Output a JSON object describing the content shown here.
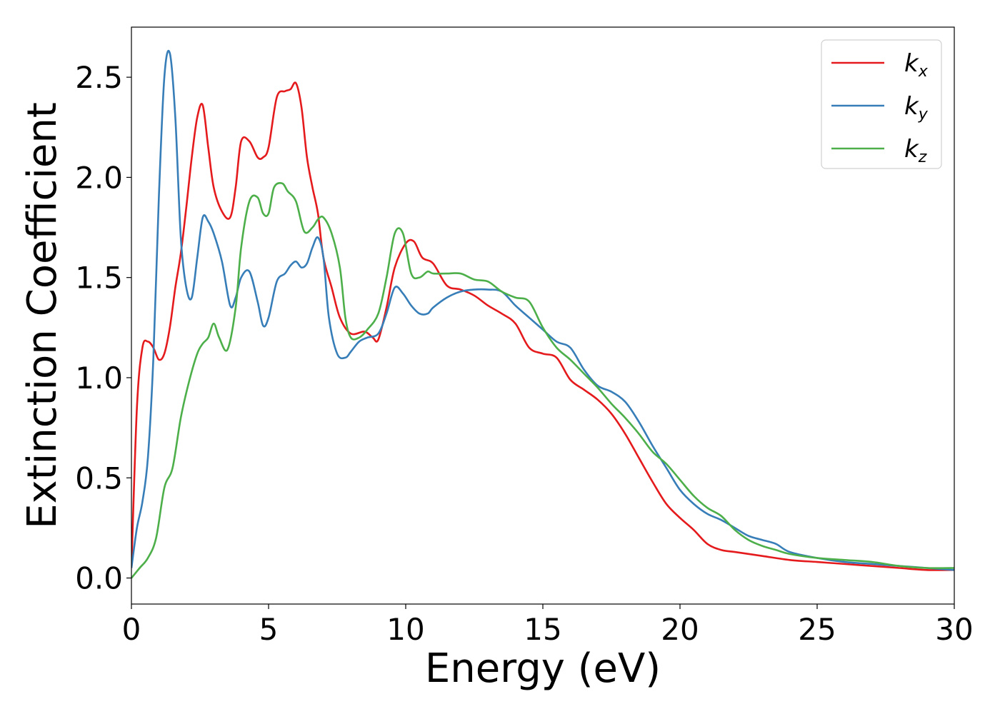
{
  "chart_data": {
    "type": "line",
    "xlabel": "Energy (eV)",
    "ylabel": "Extinction Coefficient",
    "xlim": [
      0,
      30
    ],
    "ylim": [
      -0.13,
      2.75
    ],
    "xticks": [
      0,
      5,
      10,
      15,
      20,
      25,
      30
    ],
    "xtick_labels": [
      "0",
      "5",
      "10",
      "15",
      "20",
      "25",
      "30"
    ],
    "yticks": [
      0.0,
      0.5,
      1.0,
      1.5,
      2.0,
      2.5
    ],
    "ytick_labels": [
      "0.0",
      "0.5",
      "1.0",
      "1.5",
      "2.0",
      "2.5"
    ],
    "grid": false,
    "legend_position": "top-right",
    "series": [
      {
        "name": "kx",
        "label_main": "k",
        "label_sub": "x",
        "color": "#e41a1c",
        "x": [
          0,
          0.2,
          0.4,
          0.6,
          0.8,
          1.0,
          1.2,
          1.4,
          1.6,
          1.8,
          2.0,
          2.2,
          2.4,
          2.6,
          2.8,
          3.0,
          3.3,
          3.6,
          3.8,
          4.0,
          4.3,
          4.6,
          4.8,
          5.0,
          5.3,
          5.6,
          5.8,
          6.0,
          6.2,
          6.4,
          6.6,
          6.8,
          7.0,
          7.3,
          7.6,
          8.0,
          8.5,
          8.8,
          9.0,
          9.3,
          9.6,
          10.0,
          10.3,
          10.6,
          11.0,
          11.5,
          12.0,
          12.5,
          13.0,
          13.5,
          14.0,
          14.5,
          15.0,
          15.5,
          16.0,
          16.5,
          17.0,
          17.5,
          18.0,
          18.5,
          19.0,
          19.5,
          20.0,
          20.5,
          21.0,
          21.5,
          22.0,
          23.0,
          24.0,
          25.0,
          26.0,
          27.0,
          28.0,
          29.0,
          30.0
        ],
        "y": [
          0.05,
          0.85,
          1.15,
          1.18,
          1.15,
          1.09,
          1.12,
          1.25,
          1.45,
          1.62,
          1.85,
          2.1,
          2.3,
          2.36,
          2.15,
          1.95,
          1.83,
          1.8,
          1.95,
          2.18,
          2.18,
          2.1,
          2.1,
          2.15,
          2.4,
          2.43,
          2.44,
          2.47,
          2.35,
          2.1,
          1.95,
          1.82,
          1.6,
          1.45,
          1.3,
          1.22,
          1.23,
          1.2,
          1.19,
          1.35,
          1.55,
          1.67,
          1.68,
          1.6,
          1.57,
          1.46,
          1.44,
          1.41,
          1.36,
          1.32,
          1.27,
          1.15,
          1.12,
          1.1,
          0.99,
          0.94,
          0.89,
          0.82,
          0.72,
          0.6,
          0.48,
          0.37,
          0.3,
          0.24,
          0.17,
          0.14,
          0.13,
          0.11,
          0.09,
          0.08,
          0.07,
          0.06,
          0.05,
          0.04,
          0.04
        ]
      },
      {
        "name": "ky",
        "label_main": "k",
        "label_sub": "y",
        "color": "#377eb8",
        "x": [
          0,
          0.2,
          0.4,
          0.6,
          0.8,
          1.0,
          1.2,
          1.4,
          1.6,
          1.8,
          2.0,
          2.2,
          2.4,
          2.6,
          2.8,
          3.0,
          3.3,
          3.6,
          3.8,
          4.0,
          4.3,
          4.6,
          4.8,
          5.0,
          5.3,
          5.6,
          5.8,
          6.0,
          6.2,
          6.4,
          6.6,
          6.8,
          7.0,
          7.2,
          7.5,
          7.8,
          8.0,
          8.3,
          8.6,
          9.0,
          9.3,
          9.6,
          9.9,
          10.2,
          10.5,
          10.8,
          11.0,
          11.5,
          12.0,
          12.5,
          13.0,
          13.5,
          14.0,
          14.5,
          15.0,
          15.5,
          16.0,
          16.5,
          17.0,
          17.5,
          18.0,
          18.5,
          19.0,
          19.5,
          20.0,
          20.5,
          21.0,
          21.5,
          22.0,
          22.5,
          23.0,
          23.5,
          24.0,
          25.0,
          26.0,
          27.0,
          28.0,
          29.0,
          30.0
        ],
        "y": [
          0.05,
          0.25,
          0.38,
          0.6,
          1.1,
          1.9,
          2.5,
          2.62,
          2.3,
          1.7,
          1.45,
          1.4,
          1.6,
          1.8,
          1.78,
          1.72,
          1.58,
          1.36,
          1.4,
          1.5,
          1.53,
          1.38,
          1.26,
          1.3,
          1.48,
          1.52,
          1.56,
          1.58,
          1.55,
          1.57,
          1.65,
          1.7,
          1.6,
          1.3,
          1.12,
          1.1,
          1.13,
          1.18,
          1.2,
          1.22,
          1.32,
          1.45,
          1.42,
          1.36,
          1.32,
          1.32,
          1.35,
          1.4,
          1.43,
          1.44,
          1.44,
          1.43,
          1.36,
          1.3,
          1.24,
          1.18,
          1.15,
          1.04,
          0.96,
          0.93,
          0.88,
          0.78,
          0.66,
          0.55,
          0.44,
          0.37,
          0.32,
          0.29,
          0.25,
          0.21,
          0.19,
          0.17,
          0.13,
          0.1,
          0.08,
          0.07,
          0.06,
          0.05,
          0.04
        ]
      },
      {
        "name": "kz",
        "label_main": "k",
        "label_sub": "z",
        "color": "#4daf4a",
        "x": [
          0,
          0.3,
          0.6,
          0.9,
          1.2,
          1.5,
          1.8,
          2.1,
          2.4,
          2.6,
          2.8,
          3.0,
          3.2,
          3.5,
          3.8,
          4.0,
          4.3,
          4.6,
          4.8,
          5.0,
          5.2,
          5.5,
          5.7,
          6.0,
          6.3,
          6.6,
          6.8,
          7.0,
          7.3,
          7.6,
          7.8,
          8.0,
          8.3,
          8.6,
          9.0,
          9.3,
          9.6,
          9.9,
          10.2,
          10.5,
          10.8,
          11.0,
          11.5,
          12.0,
          12.5,
          13.0,
          13.5,
          14.0,
          14.5,
          15.0,
          15.5,
          16.0,
          16.5,
          17.0,
          17.5,
          18.0,
          18.5,
          19.0,
          19.5,
          20.0,
          20.5,
          21.0,
          21.5,
          22.0,
          22.5,
          23.0,
          23.5,
          24.0,
          25.0,
          26.0,
          27.0,
          28.0,
          29.0,
          30.0
        ],
        "y": [
          0.0,
          0.05,
          0.1,
          0.2,
          0.45,
          0.55,
          0.8,
          0.98,
          1.12,
          1.17,
          1.2,
          1.27,
          1.2,
          1.14,
          1.35,
          1.65,
          1.88,
          1.9,
          1.82,
          1.82,
          1.95,
          1.97,
          1.93,
          1.88,
          1.73,
          1.75,
          1.79,
          1.8,
          1.72,
          1.55,
          1.3,
          1.2,
          1.2,
          1.24,
          1.32,
          1.5,
          1.72,
          1.72,
          1.52,
          1.5,
          1.53,
          1.52,
          1.52,
          1.52,
          1.49,
          1.48,
          1.43,
          1.4,
          1.38,
          1.25,
          1.15,
          1.09,
          1.02,
          0.95,
          0.87,
          0.8,
          0.72,
          0.63,
          0.57,
          0.49,
          0.41,
          0.35,
          0.31,
          0.24,
          0.19,
          0.16,
          0.14,
          0.12,
          0.1,
          0.09,
          0.08,
          0.06,
          0.05,
          0.05
        ]
      }
    ]
  }
}
